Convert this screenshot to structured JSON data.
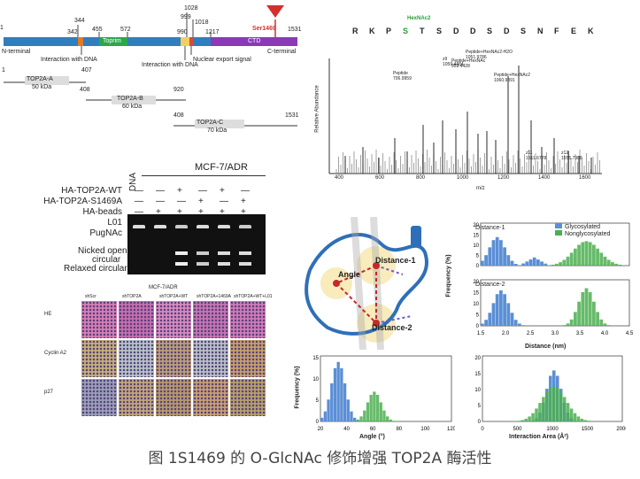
{
  "domain_diagram": {
    "ticks_top": [
      "1",
      "344",
      "455",
      "572",
      "1028",
      "999",
      "1018",
      "1531",
      "342",
      "990",
      "1217"
    ],
    "ser_label": "Ser1469",
    "domains": {
      "toprim": "Toprim",
      "ctd": "CTD"
    },
    "notes": {
      "n_terminal": "N-terminal",
      "interaction1": "Interaction with DNA",
      "interaction2": "Interaction with DNA",
      "nes": "Nuclear export signal",
      "c_terminal": "C-terminal"
    },
    "fragments": [
      {
        "name": "TOP2A-A",
        "size": "50 kDa",
        "start": "1",
        "end": "407"
      },
      {
        "name": "TOP2A-B",
        "size": "60 kDa",
        "start": "408",
        "end": "920"
      },
      {
        "name": "TOP2A-C",
        "size": "70 kDa",
        "start": "408",
        "end": "1531"
      }
    ]
  },
  "ms": {
    "sequence": [
      "R",
      "K",
      "P",
      "S",
      "T",
      "S",
      "D",
      "D",
      "S",
      "D",
      "S",
      "N",
      "F",
      "E",
      "K"
    ],
    "modification": "HexNAc2",
    "y_label": "Relative Abundance",
    "x_label": "m/z",
    "x_ticks": [
      "400",
      "600",
      "800",
      "1000",
      "1200",
      "1400",
      "1600"
    ],
    "peaks": [
      {
        "label": "Peptide+HexNAc2-H2O",
        "mz": "1051.9786"
      },
      {
        "label": "Peptide+HexNAc2",
        "mz": "1060.9891"
      },
      {
        "label": "Peptide+HexNAc",
        "mz": "959.4428"
      },
      {
        "label": "Peptide",
        "mz": "706.9959"
      },
      {
        "label": "z9",
        "mz": "1059.4484"
      },
      {
        "label": "z11",
        "mz": "1511.6778"
      },
      {
        "label": "z12",
        "mz": "1555.7308"
      }
    ]
  },
  "gel": {
    "header": "MCF-7/ADR",
    "dna_label": "DNA",
    "rows": [
      {
        "label": "HA-TOP2A-WT",
        "marks": [
          "—",
          "—",
          "+",
          "—",
          "+",
          "—"
        ]
      },
      {
        "label": "HA-TOP2A-S1469A",
        "marks": [
          "—",
          "—",
          "—",
          "+",
          "—",
          "+"
        ]
      },
      {
        "label": "HA-beads",
        "marks": [
          "—",
          "+",
          "+",
          "+",
          "+",
          "+"
        ]
      },
      {
        "label": "L01",
        "marks": [
          "—",
          "—",
          "—",
          "—",
          "+",
          "—"
        ]
      },
      {
        "label": "PugNAc",
        "marks": [
          "—",
          "—",
          "—",
          "—",
          "—",
          "+"
        ]
      }
    ],
    "band_labels": [
      "Nicked open",
      "circular",
      "Relaxed circular"
    ]
  },
  "ihc": {
    "header": "MCF-7/ADR",
    "columns": [
      "shScr",
      "shTOP2A",
      "shTOP2A+WT",
      "shTOP2A+1469A",
      "shTOP2A+WT+L01"
    ],
    "rows": [
      "HE",
      "Cyclin A2",
      "p27"
    ]
  },
  "md": {
    "labels": {
      "distance1": "Distance-1",
      "distance2": "Distance-2",
      "angle": "Angle"
    }
  },
  "chart_data": [
    {
      "type": "bar",
      "title": "Distance-1",
      "xlabel": "",
      "ylabel": "Frequency (%)",
      "ylim": [
        0,
        20
      ],
      "series": [
        {
          "name": "Glycosylated",
          "color": "#5b8fd6"
        },
        {
          "name": "Nonglycosylated",
          "color": "#4caf50"
        }
      ],
      "legend": "top-right"
    },
    {
      "type": "bar",
      "title": "Distance-2",
      "xlabel": "Distance (nm)",
      "ylabel": "Frequency (%)",
      "xlim": [
        1.5,
        4.5
      ],
      "ylim": [
        0,
        20
      ],
      "x_ticks": [
        "1.5",
        "2.0",
        "2.5",
        "3.0",
        "3.5",
        "4.0",
        "4.5"
      ],
      "y_ticks": [
        "0",
        "5",
        "10",
        "15",
        "20"
      ]
    },
    {
      "type": "bar",
      "title": "",
      "xlabel": "Angle (°)",
      "ylabel": "Frequency (%)",
      "xlim": [
        20,
        120
      ],
      "ylim": [
        0,
        15
      ],
      "x_ticks": [
        "20",
        "40",
        "60",
        "80",
        "100",
        "120"
      ],
      "y_ticks": [
        "0",
        "5",
        "10",
        "15"
      ]
    },
    {
      "type": "bar",
      "title": "",
      "xlabel": "Interaction Area (Å²)",
      "ylabel": "Frequency (%)",
      "xlim": [
        0,
        2000
      ],
      "ylim": [
        0,
        20
      ],
      "x_ticks": [
        "0",
        "500",
        "1000",
        "1500",
        "2000"
      ],
      "y_ticks": [
        "0",
        "5",
        "10",
        "15",
        "20"
      ]
    }
  ],
  "caption": "图 1S1469 的 O-GlcNAc 修饰增强 TOP2A 酶活性"
}
